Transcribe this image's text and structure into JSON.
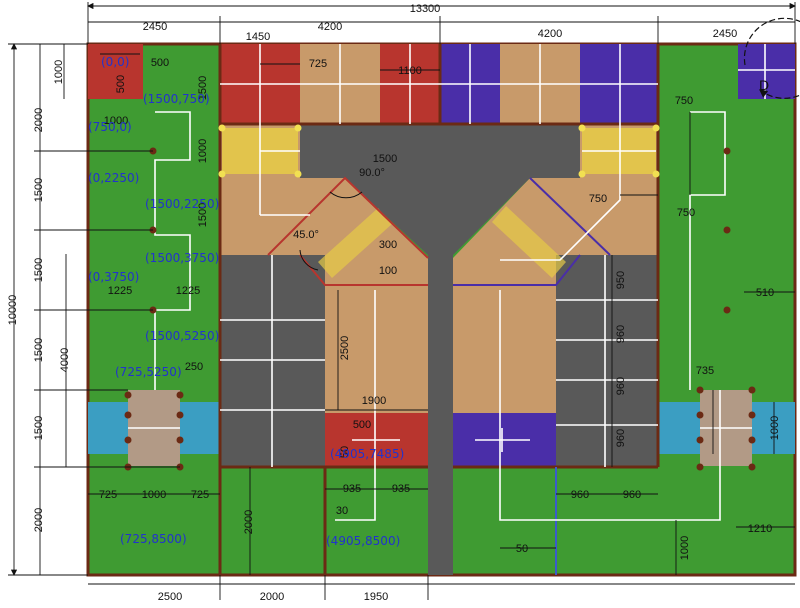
{
  "colors": {
    "green": "#3f9b32",
    "gray": "#595959",
    "tan": "#c89a6a",
    "red": "#b8352e",
    "blue": "#4a2ea8",
    "cyan": "#3b9ec2",
    "yellow": "#e6cb47",
    "taupe": "#b29a86",
    "brown": "#6b2a14",
    "pink": "#f2c9c9",
    "white": "#ffffff",
    "coord": "#2233cc"
  },
  "dimensions": {
    "overall_width": "13300",
    "overall_height": "10000",
    "top_2450_left": "2450",
    "top_4200_mid": "4200",
    "top_4200_right": "4200",
    "top_2450_right": "2450",
    "top_1450": "1450",
    "top_725": "725",
    "top_1100": "1100",
    "top_500": "500",
    "left_1000": "1000",
    "left_2000_a": "2000",
    "left_1500_a": "1500",
    "left_1500_b": "1500",
    "left_1500_c": "1500",
    "left_1500_d": "1500",
    "left_2000_b": "2000",
    "left_4000": "4000",
    "col_500": "500",
    "col_1000": "1000",
    "col_1000b": "1000",
    "col_1500": "1500",
    "col_1500b": "1500",
    "w_1225_a": "1225",
    "w_1225_b": "1225",
    "w_250": "250",
    "w_725_a": "725",
    "w_1000": "1000",
    "w_725_b": "725",
    "w_1500_mid": "1500",
    "angle_90": "90.0°",
    "angle_45": "45.0°",
    "w_300": "300",
    "w_100": "100",
    "v_2500": "2500",
    "w_1900": "1900",
    "w_500_bot": "500",
    "v_50": "50",
    "w_935_a": "935",
    "w_935_b": "935",
    "w_30": "30",
    "r_750_a": "750",
    "r_750_b": "750",
    "r_750_c": "750",
    "r_510": "510",
    "r_950": "950",
    "r_960_a": "960",
    "r_960_b": "960",
    "r_960_c": "960",
    "r_735": "735",
    "r_1000": "1000",
    "r_960_d": "960",
    "r_960_e": "960",
    "r_1210": "1210",
    "r_50": "50",
    "r_1000_v": "1000",
    "bottom_2500": "2500",
    "bottom_2000_a": "2000",
    "bottom_2000_b": "2000",
    "bottom_1950": "1950",
    "marker_d": "D"
  },
  "coordinates": [
    {
      "label": "(0,0)"
    },
    {
      "label": "(1500,750)"
    },
    {
      "label": "(750,0)"
    },
    {
      "label": "(0,2250)"
    },
    {
      "label": "(1500,2250)"
    },
    {
      "label": "(1500,3750)"
    },
    {
      "label": "(0,3750)"
    },
    {
      "label": "(1500,5250)"
    },
    {
      "label": "(725,5250)"
    },
    {
      "label": "(4905,7485)"
    },
    {
      "label": "(725,8500)"
    },
    {
      "label": "(4905,8500)"
    }
  ]
}
